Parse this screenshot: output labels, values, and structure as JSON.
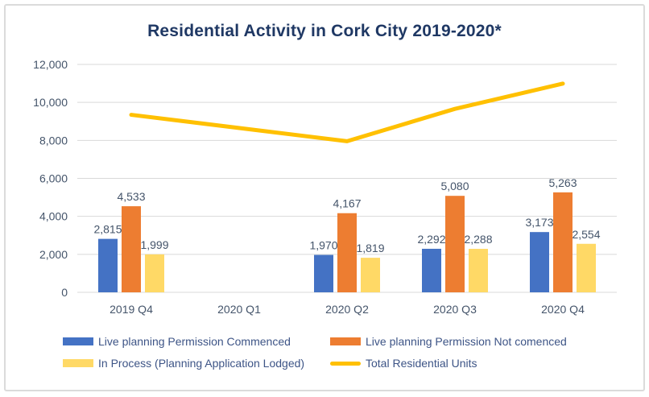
{
  "chart_data": {
    "type": "combo",
    "title": "Residential Activity in Cork City 2019-2020*",
    "categories": [
      "2019 Q4",
      "2020 Q1",
      "2020 Q2",
      "2020 Q3",
      "2020 Q4"
    ],
    "series": [
      {
        "name": "Live planning Permission Commenced",
        "type": "bar",
        "color": "#4472C4",
        "values": [
          2815,
          null,
          1970,
          2292,
          3173
        ]
      },
      {
        "name": "Live planning Permission Not comenced",
        "type": "bar",
        "color": "#ED7D31",
        "values": [
          4533,
          null,
          4167,
          5080,
          5263
        ]
      },
      {
        "name": "In Process (Planning Application Lodged)",
        "type": "bar",
        "color": "#FFD966",
        "values": [
          1999,
          null,
          1819,
          2288,
          2554
        ]
      },
      {
        "name": "Total Residential Units",
        "type": "line",
        "color": "#FFC000",
        "values": [
          9347,
          null,
          7956,
          9660,
          10990
        ]
      }
    ],
    "y_axis": {
      "min": 0,
      "max": 12000,
      "step": 2000
    },
    "data_labels": true,
    "grid": true,
    "legend_position": "bottom",
    "colors": {
      "title": "#1F3864",
      "axis_text": "#44546A",
      "data_label_text": "#44546A",
      "legend_text": "#3D5486",
      "gridline": "#D9D9D9"
    }
  }
}
